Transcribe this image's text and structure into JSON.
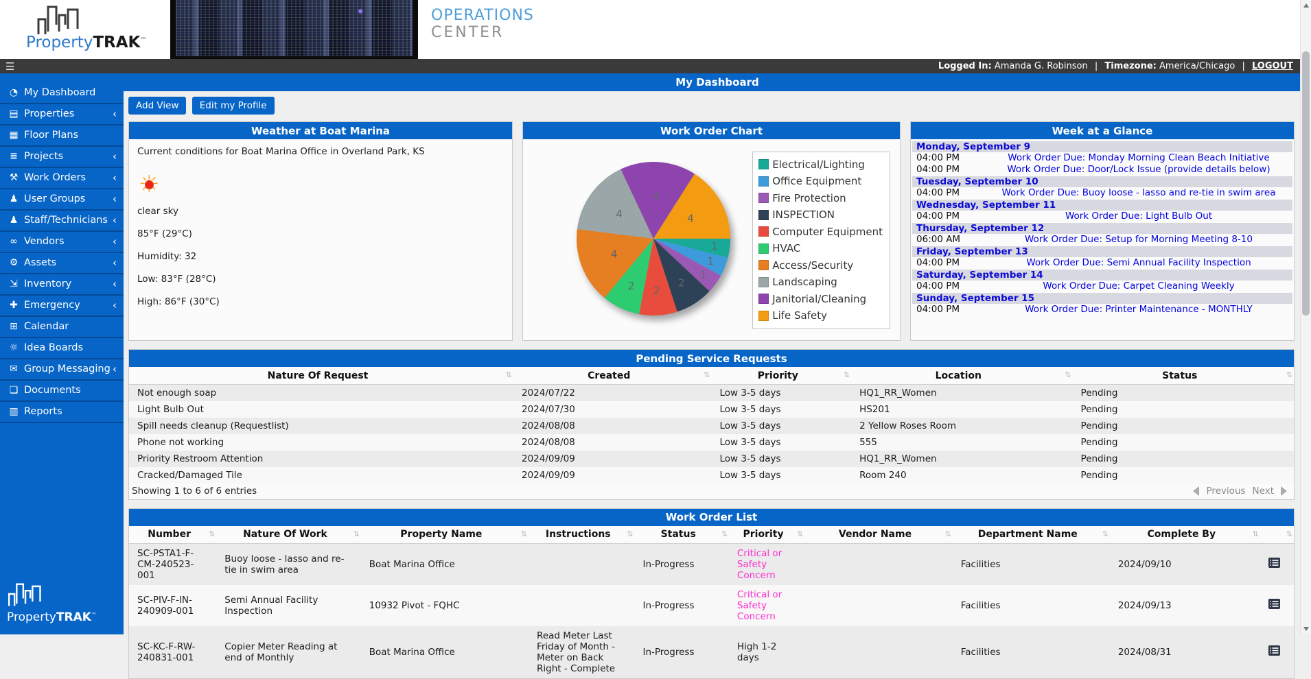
{
  "brand": {
    "property": "Property",
    "trak": "TRAK",
    "tm": "™",
    "operations": "OPERATIONS",
    "center": "CENTER"
  },
  "userbar": {
    "menu_icon": "☰",
    "logged_in_label": "Logged In:",
    "user": "Amanda G. Robinson",
    "sep": "|",
    "timezone_label": "Timezone:",
    "timezone": "America/Chicago",
    "logout": "LOGOUT"
  },
  "page": {
    "title": "My Dashboard"
  },
  "toolbar": {
    "add_view": "Add View",
    "edit_profile": "Edit my Profile"
  },
  "sidebar": {
    "items": [
      {
        "name": "sidebar-item-my-dashboard",
        "icon_name": "gauge-icon",
        "glyph": "◔",
        "label": "My Dashboard",
        "chevron": ""
      },
      {
        "name": "sidebar-item-properties",
        "icon_name": "building-icon",
        "glyph": "▤",
        "label": "Properties",
        "chevron": "‹"
      },
      {
        "name": "sidebar-item-floor-plans",
        "icon_name": "map-icon",
        "glyph": "▦",
        "label": "Floor Plans",
        "chevron": ""
      },
      {
        "name": "sidebar-item-projects",
        "icon_name": "tasks-icon",
        "glyph": "≣",
        "label": "Projects",
        "chevron": "‹"
      },
      {
        "name": "sidebar-item-work-orders",
        "icon_name": "wrench-icon",
        "glyph": "⚒",
        "label": "Work Orders",
        "chevron": "‹"
      },
      {
        "name": "sidebar-item-user-groups",
        "icon_name": "user-icon",
        "glyph": "♟",
        "label": "User Groups",
        "chevron": "‹"
      },
      {
        "name": "sidebar-item-staff-technicians",
        "icon_name": "users-icon",
        "glyph": "♟",
        "label": "Staff/Technicians",
        "chevron": "‹"
      },
      {
        "name": "sidebar-item-vendors",
        "icon_name": "handshake-icon",
        "glyph": "∞",
        "label": "Vendors",
        "chevron": "‹"
      },
      {
        "name": "sidebar-item-assets",
        "icon_name": "gears-icon",
        "glyph": "⚙",
        "label": "Assets",
        "chevron": "‹"
      },
      {
        "name": "sidebar-item-inventory",
        "icon_name": "dolly-icon",
        "glyph": "⇲",
        "label": "Inventory",
        "chevron": "‹"
      },
      {
        "name": "sidebar-item-emergency",
        "icon_name": "medical-cross-icon",
        "glyph": "✚",
        "label": "Emergency",
        "chevron": "‹"
      },
      {
        "name": "sidebar-item-calendar",
        "icon_name": "calendar-icon",
        "glyph": "⊞",
        "label": "Calendar",
        "chevron": ""
      },
      {
        "name": "sidebar-item-idea-boards",
        "icon_name": "lightbulb-icon",
        "glyph": "☼",
        "label": "Idea Boards",
        "chevron": ""
      },
      {
        "name": "sidebar-item-group-messaging",
        "icon_name": "envelope-icon",
        "glyph": "✉",
        "label": "Group Messaging",
        "chevron": "‹"
      },
      {
        "name": "sidebar-item-documents",
        "icon_name": "document-icon",
        "glyph": "❏",
        "label": "Documents",
        "chevron": ""
      },
      {
        "name": "sidebar-item-reports",
        "icon_name": "bar-chart-icon",
        "glyph": "▥",
        "label": "Reports",
        "chevron": ""
      }
    ]
  },
  "weather": {
    "title": "Weather at Boat Marina",
    "conditions_line": "Current conditions for Boat Marina Office in Overland Park, KS",
    "summary": "clear sky",
    "temperature": "85°F (29°C)",
    "humidity": "Humidity: 32",
    "low": "Low: 83°F (28°C)",
    "high": "High: 86°F (30°C)"
  },
  "chart_data": {
    "type": "pie",
    "title": "Work Order Chart",
    "legend_position": "right",
    "start_angle_deg": 0,
    "direction": "clockwise",
    "total": 25,
    "series": [
      {
        "name": "Electrical/Lighting",
        "value": 1,
        "color": "#18a999"
      },
      {
        "name": "Office Equipment",
        "value": 1,
        "color": "#3d9bdc"
      },
      {
        "name": "Fire Protection",
        "value": 1,
        "color": "#9b59b6"
      },
      {
        "name": "INSPECTION",
        "value": 2,
        "color": "#2e4257"
      },
      {
        "name": "Computer Equipment",
        "value": 2,
        "color": "#e74c3c"
      },
      {
        "name": "HVAC",
        "value": 2,
        "color": "#2ecc71"
      },
      {
        "name": "Access/Security",
        "value": 4,
        "color": "#e67e22"
      },
      {
        "name": "Landscaping",
        "value": 4,
        "color": "#9aa6a7"
      },
      {
        "name": "Janitorial/Cleaning",
        "value": 4,
        "color": "#8e44ad"
      },
      {
        "name": "Life Safety",
        "value": 4,
        "color": "#f39c12"
      }
    ]
  },
  "week": {
    "title": "Week at a Glance",
    "rows": [
      {
        "is_day": true,
        "label": "Monday, September 9"
      },
      {
        "is_event": true,
        "time": "04:00 PM",
        "title": "Work Order Due: Monday Morning Clean Beach Initiative"
      },
      {
        "is_event": true,
        "time": "04:00 PM",
        "title": "Work Order Due: Door/Lock Issue (provide details below)"
      },
      {
        "is_day": true,
        "label": "Tuesday, September 10"
      },
      {
        "is_event": true,
        "time": "04:00 PM",
        "title": "Work Order Due: Buoy loose - lasso and re-tie in swim area"
      },
      {
        "is_day": true,
        "label": "Wednesday, September 11"
      },
      {
        "is_event": true,
        "time": "04:00 PM",
        "title": "Work Order Due: Light Bulb Out"
      },
      {
        "is_day": true,
        "label": "Thursday, September 12"
      },
      {
        "is_event": true,
        "time": "06:00 AM",
        "title": "Work Order Due: Setup for Morning Meeting 8-10"
      },
      {
        "is_day": true,
        "label": "Friday, September 13"
      },
      {
        "is_event": true,
        "time": "04:00 PM",
        "title": "Work Order Due: Semi Annual Facility Inspection"
      },
      {
        "is_day": true,
        "label": "Saturday, September 14"
      },
      {
        "is_event": true,
        "time": "04:00 PM",
        "title": "Work Order Due: Carpet Cleaning Weekly"
      },
      {
        "is_day": true,
        "label": "Sunday, September 15"
      },
      {
        "is_event": true,
        "time": "04:00 PM",
        "title": "Work Order Due: Printer Maintenance - MONTHLY"
      }
    ]
  },
  "pending": {
    "title": "Pending Service Requests",
    "headers": [
      "Nature Of Request",
      "Created",
      "Priority",
      "Location",
      "Status"
    ],
    "rows": [
      {
        "nature": "Not enough soap",
        "created": "2024/07/22",
        "priority": "Low 3-5 days",
        "location": "HQ1_RR_Women",
        "status": "Pending"
      },
      {
        "nature": "Light Bulb Out",
        "created": "2024/07/30",
        "priority": "Low 3-5 days",
        "location": "HS201",
        "status": "Pending"
      },
      {
        "nature": "Spill needs cleanup (Requestlist)",
        "created": "2024/08/08",
        "priority": "Low 3-5 days",
        "location": "2 Yellow Roses Room",
        "status": "Pending"
      },
      {
        "nature": "Phone not working",
        "created": "2024/08/08",
        "priority": "Low 3-5 days",
        "location": "555",
        "status": "Pending"
      },
      {
        "nature": "Priority Restroom Attention",
        "created": "2024/09/09",
        "priority": "Low 3-5 days",
        "location": "HQ1_RR_Women",
        "status": "Pending"
      },
      {
        "nature": "Cracked/Damaged Tile",
        "created": "2024/09/09",
        "priority": "Low 3-5 days",
        "location": "Room 240",
        "status": "Pending"
      }
    ],
    "summary": "Showing 1 to 6 of 6 entries",
    "previous": "Previous",
    "next": "Next"
  },
  "work_orders": {
    "title": "Work Order List",
    "headers": [
      "Number",
      "Nature Of Work",
      "Property Name",
      "Instructions",
      "Status",
      "Priority",
      "Vendor Name",
      "Department Name",
      "Complete By",
      ""
    ],
    "rows": [
      {
        "number": "SC-PSTA1-F-CM-240523-001",
        "nature": "Buoy loose - lasso and re-tie in swim area",
        "property": "Boat Marina Office",
        "instructions": "",
        "status": "In-Progress",
        "priority": "Critical or Safety Concern",
        "priority_color": "#ff2bd1",
        "vendor": "",
        "department": "Facilities",
        "complete_by": "2024/09/10"
      },
      {
        "number": "SC-PIV-F-IN-240909-001",
        "nature": "Semi Annual Facility Inspection",
        "property": "10932 Pivot - FQHC",
        "instructions": "",
        "status": "In-Progress",
        "priority": "Critical or Safety Concern",
        "priority_color": "#ff2bd1",
        "vendor": "",
        "department": "Facilities",
        "complete_by": "2024/09/13"
      },
      {
        "number": "SC-KC-F-RW-240831-001",
        "nature": "Copier Meter Reading at end of Monthly",
        "property": "Boat Marina Office",
        "instructions": "Read Meter Last Friday of Month - Meter on Back Right - Complete",
        "status": "In-Progress",
        "priority": "High 1-2 days",
        "priority_color": "#1c1c1c",
        "vendor": "",
        "department": "Facilities",
        "complete_by": "2024/08/31"
      }
    ]
  }
}
